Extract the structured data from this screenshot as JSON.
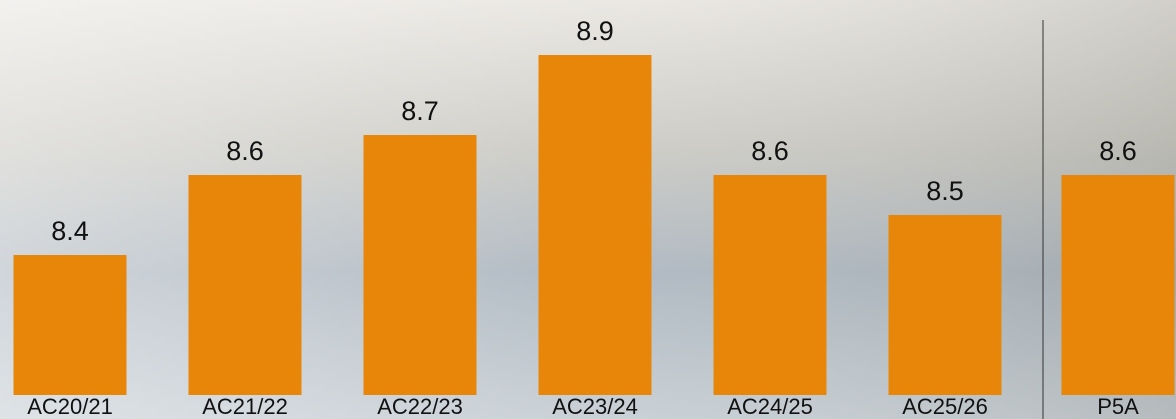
{
  "chart_data": {
    "type": "bar",
    "categories": [
      "AC20/21",
      "AC21/22",
      "AC22/23",
      "AC23/24",
      "AC24/25",
      "AC25/26",
      "P5A"
    ],
    "values": [
      8.4,
      8.6,
      8.7,
      8.9,
      8.6,
      8.5,
      8.6
    ],
    "color": "#e8860a",
    "ylim": [
      8.05,
      9.0
    ]
  }
}
